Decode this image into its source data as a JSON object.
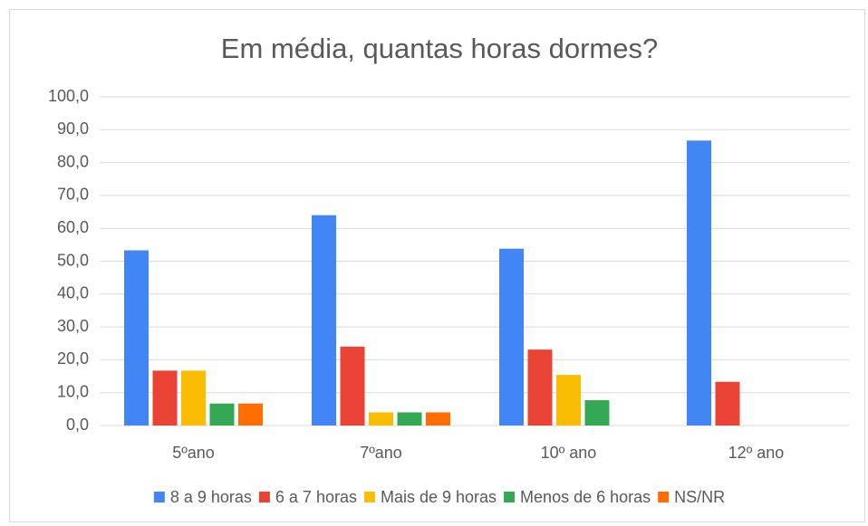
{
  "chart_data": {
    "type": "bar",
    "title": "Em média, quantas horas dormes?",
    "categories": [
      "5ºano",
      "7ºano",
      "10º ano",
      "12º ano"
    ],
    "series": [
      {
        "name": "8 a 9 horas",
        "color": "#4285f4",
        "values": [
          53.3,
          64.0,
          53.8,
          86.7
        ]
      },
      {
        "name": "6 a 7 horas",
        "color": "#ea4335",
        "values": [
          16.7,
          24.0,
          23.1,
          13.3
        ]
      },
      {
        "name": "Mais de 9 horas",
        "color": "#fbbc04",
        "values": [
          16.7,
          4.0,
          15.4,
          0
        ]
      },
      {
        "name": "Menos de 6 horas",
        "color": "#34a853",
        "values": [
          6.7,
          4.0,
          7.7,
          0
        ]
      },
      {
        "name": "NS/NR",
        "color": "#ff6d01",
        "values": [
          6.7,
          4.0,
          0,
          0
        ]
      }
    ],
    "ylim": [
      0,
      100
    ],
    "yticks": [
      {
        "value": 0,
        "label": "0,0"
      },
      {
        "value": 10,
        "label": "10,0"
      },
      {
        "value": 20,
        "label": "20,0"
      },
      {
        "value": 30,
        "label": "30,0"
      },
      {
        "value": 40,
        "label": "40,0"
      },
      {
        "value": 50,
        "label": "50,0"
      },
      {
        "value": 60,
        "label": "60,0"
      },
      {
        "value": 70,
        "label": "70,0"
      },
      {
        "value": 80,
        "label": "80,0"
      },
      {
        "value": 90,
        "label": "90,0"
      },
      {
        "value": 100,
        "label": "100,0"
      }
    ],
    "grid": true,
    "legend": "bottom"
  }
}
